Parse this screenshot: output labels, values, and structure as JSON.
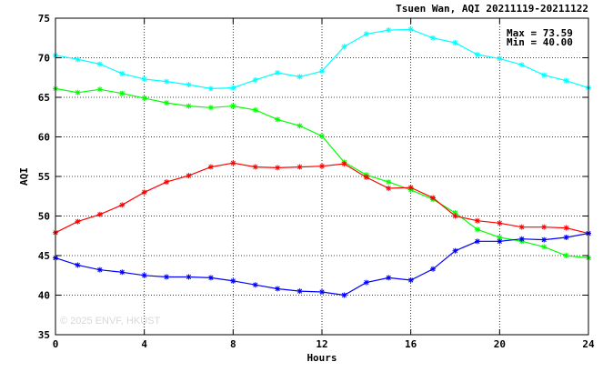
{
  "chart_data": {
    "type": "line",
    "title": "Tsuen Wan, AQI 20211119-20211122",
    "xlabel": "Hours",
    "ylabel": "AQI",
    "xlim": [
      0,
      24
    ],
    "ylim": [
      35,
      75
    ],
    "xticks": [
      0,
      4,
      8,
      12,
      16,
      20,
      24
    ],
    "yticks": [
      35,
      40,
      45,
      50,
      55,
      60,
      65,
      70,
      75
    ],
    "grid": true,
    "x": [
      0,
      1,
      2,
      3,
      4,
      5,
      6,
      7,
      8,
      9,
      10,
      11,
      12,
      13,
      14,
      15,
      16,
      17,
      18,
      19,
      20,
      21,
      22,
      23,
      24
    ],
    "stats": {
      "max_text": "Max = 73.59",
      "min_text": "Min = 40.00"
    },
    "watermark": "© 2025 ENVF, HKUST",
    "series": [
      {
        "color": "#00ffff",
        "values": [
          70.3,
          69.8,
          69.2,
          68.0,
          67.3,
          67.0,
          66.6,
          66.1,
          66.2,
          67.2,
          68.1,
          67.6,
          68.3,
          71.4,
          73.0,
          73.5,
          73.59,
          72.5,
          71.9,
          70.4,
          69.9,
          69.1,
          67.8,
          67.1,
          66.2
        ]
      },
      {
        "color": "#00ff00",
        "values": [
          66.1,
          65.6,
          66.0,
          65.5,
          64.9,
          64.3,
          63.9,
          63.7,
          63.9,
          63.4,
          62.2,
          61.4,
          60.1,
          56.8,
          55.2,
          54.3,
          53.3,
          52.1,
          50.4,
          48.3,
          47.3,
          46.8,
          46.1,
          45.0,
          44.7
        ]
      },
      {
        "color": "#ff0000",
        "values": [
          47.9,
          49.3,
          50.2,
          51.4,
          53.0,
          54.3,
          55.1,
          56.2,
          56.7,
          56.2,
          56.1,
          56.2,
          56.3,
          56.6,
          54.9,
          53.5,
          53.6,
          52.3,
          50.0,
          49.4,
          49.1,
          48.6,
          48.6,
          48.5,
          47.8
        ]
      },
      {
        "color": "#0000ff",
        "values": [
          44.7,
          43.8,
          43.2,
          42.9,
          42.5,
          42.3,
          42.3,
          42.2,
          41.8,
          41.3,
          40.8,
          40.5,
          40.4,
          40.0,
          41.6,
          42.2,
          41.9,
          43.3,
          45.6,
          46.8,
          46.8,
          47.1,
          47.0,
          47.3,
          47.8
        ]
      }
    ]
  }
}
